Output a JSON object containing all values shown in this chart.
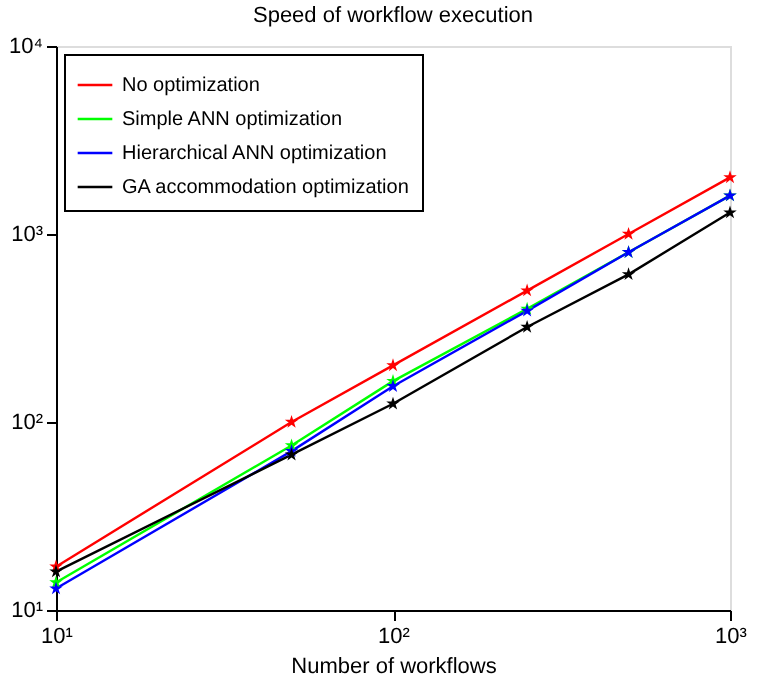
{
  "chart_data": {
    "type": "line",
    "title": "Speed of workflow execution",
    "xlabel": "Number of workflows",
    "x": [
      10,
      50,
      100,
      250,
      500,
      1000
    ],
    "series": [
      {
        "name": "No optimization",
        "color": "#ff0000",
        "values": [
          17,
          100,
          200,
          500,
          1000,
          2000
        ]
      },
      {
        "name": "Simple ANN optimization",
        "color": "#00ff00",
        "values": [
          14,
          75,
          165,
          400,
          800,
          1600
        ]
      },
      {
        "name": "Hierarchical ANN optimization",
        "color": "#0000ff",
        "values": [
          13,
          70,
          155,
          390,
          800,
          1600
        ]
      },
      {
        "name": "GA accommodation optimization",
        "color": "#000000",
        "values": [
          16,
          67,
          125,
          320,
          610,
          1300
        ]
      }
    ],
    "log": "xy",
    "xlim": [
      10,
      1000
    ],
    "ylim": [
      10,
      10000
    ],
    "xticks": [
      {
        "value": 10,
        "label": "10¹"
      },
      {
        "value": 100,
        "label": "10²"
      },
      {
        "value": 1000,
        "label": "10³"
      }
    ],
    "yticks": [
      {
        "value": 10,
        "label": "10¹"
      },
      {
        "value": 100,
        "label": "10²"
      },
      {
        "value": 1000,
        "label": "10³"
      },
      {
        "value": 10000,
        "label": "10⁴"
      }
    ],
    "grid": false,
    "legend": "top left",
    "marker": "star",
    "line_style": "solid"
  }
}
